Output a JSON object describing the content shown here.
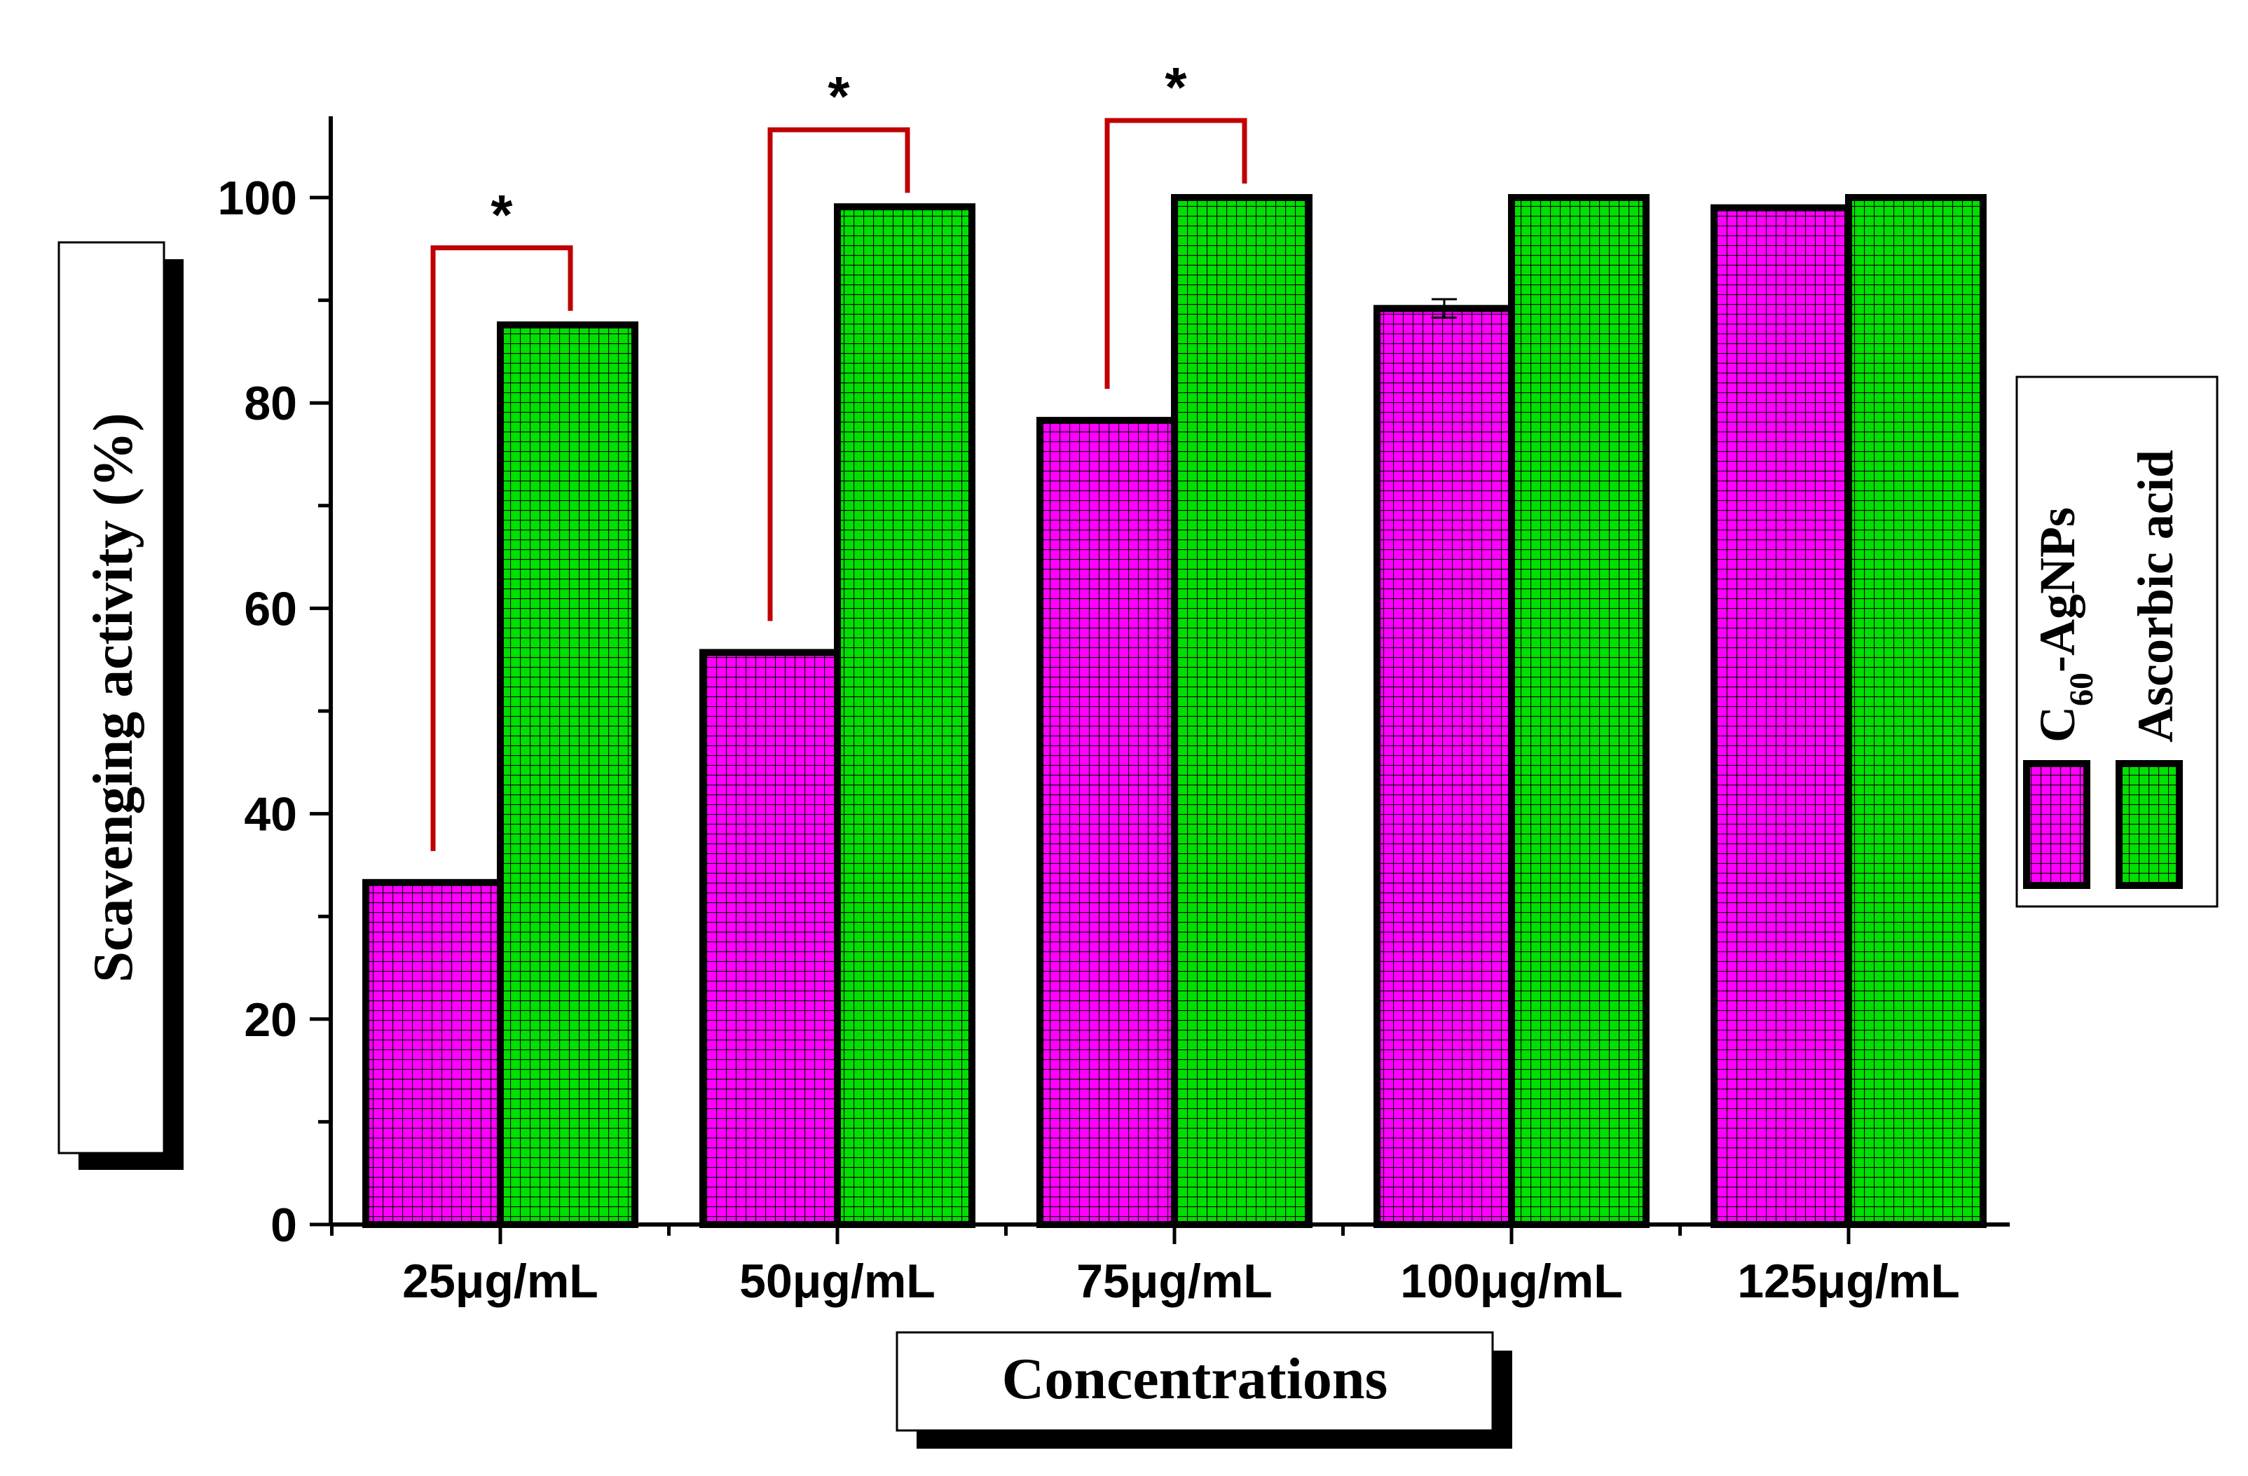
{
  "chart_data": {
    "type": "bar",
    "title": "",
    "xlabel": "Concentrations",
    "ylabel": "Scavenging activity (%)",
    "ylim": [
      0,
      105
    ],
    "yticks": [
      0,
      20,
      40,
      60,
      80,
      100
    ],
    "categories": [
      "25μg/mL",
      "50μg/mL",
      "75μg/mL",
      "100μg/mL",
      "125μg/mL"
    ],
    "series": [
      {
        "name": "C60-AgNPs",
        "name_main": "C",
        "name_sub": "60",
        "name_rest": "-AgNPs",
        "color": "#ff00ff",
        "values": [
          33.3,
          55.7,
          78.3,
          89.2,
          99.0
        ],
        "errors": [
          0,
          0,
          0,
          0.9,
          0
        ]
      },
      {
        "name": "Ascorbic acid",
        "color": "#00e000",
        "values": [
          87.6,
          99.1,
          100.0,
          100.0,
          100.0
        ],
        "errors": [
          0,
          0,
          0,
          0,
          0
        ]
      }
    ],
    "significance": [
      {
        "category_index": 0,
        "label": "*"
      },
      {
        "category_index": 1,
        "label": "*"
      },
      {
        "category_index": 2,
        "label": "*"
      }
    ],
    "legend_position": "right",
    "grid": false
  }
}
